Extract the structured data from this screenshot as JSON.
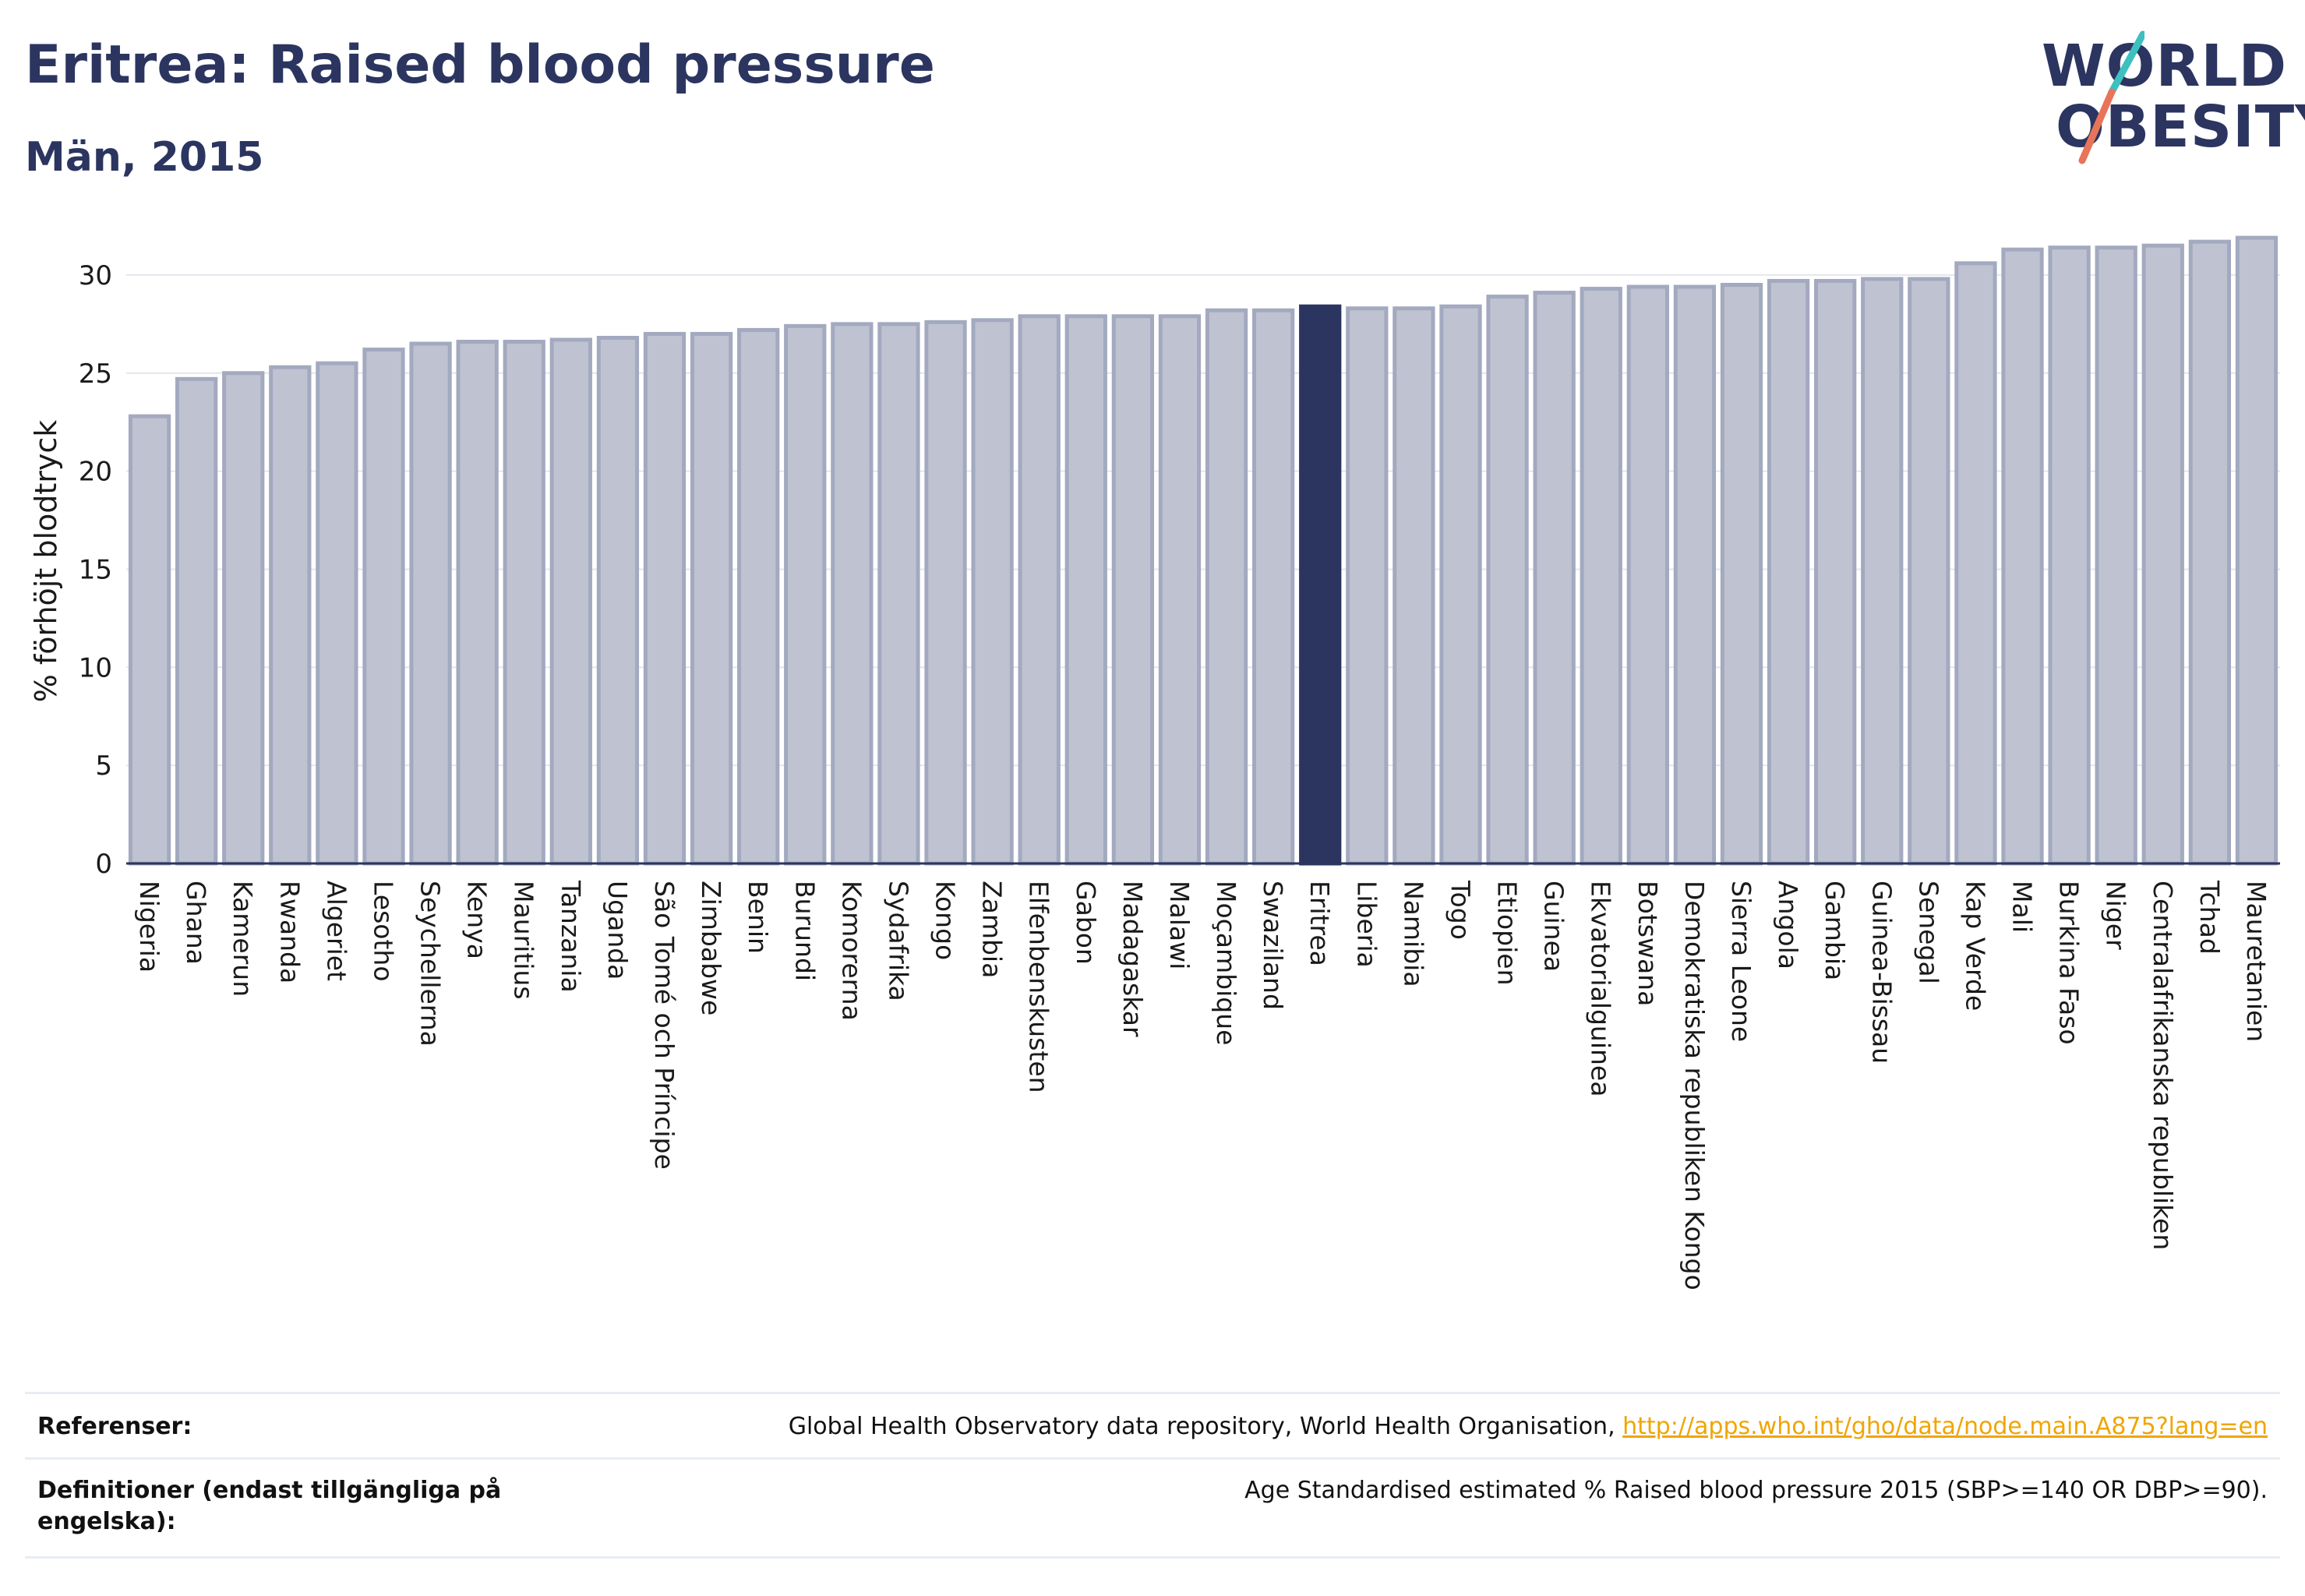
{
  "header": {
    "title": "Eritrea: Raised blood pressure",
    "subtitle": "Män, 2015"
  },
  "logo": {
    "line1": "WORLD",
    "line2": "OBESITY",
    "slash_colors": [
      "#3cc0c0",
      "#e8745a"
    ]
  },
  "colors": {
    "highlight": "#2b3560",
    "bar_fill": "#bfc3d1",
    "bar_stroke": "#a3a9bf",
    "grid": "#e3e6ee"
  },
  "chart_data": {
    "type": "bar",
    "title": "Eritrea: Raised blood pressure",
    "subtitle": "Män, 2015",
    "xlabel": "",
    "ylabel": "% förhöjt blodtryck",
    "ylim": [
      0,
      32.5
    ],
    "yticks": [
      0,
      5,
      10,
      15,
      20,
      25,
      30
    ],
    "grid": true,
    "highlight": "Eritrea",
    "categories": [
      "Nigeria",
      "Ghana",
      "Kamerun",
      "Rwanda",
      "Algeriet",
      "Lesotho",
      "Seychellerna",
      "Kenya",
      "Mauritius",
      "Tanzania",
      "Uganda",
      "São Tomé och Príncipe",
      "Zimbabwe",
      "Benin",
      "Burundi",
      "Komorerna",
      "Sydafrika",
      "Kongo",
      "Zambia",
      "Elfenbenskusten",
      "Gabon",
      "Madagaskar",
      "Malawi",
      "Moçambique",
      "Swaziland",
      "Eritrea",
      "Liberia",
      "Namibia",
      "Togo",
      "Etiopien",
      "Guinea",
      "Ekvatorialguinea",
      "Botswana",
      "Demokratiska republiken Kongo",
      "Sierra Leone",
      "Angola",
      "Gambia",
      "Guinea-Bissau",
      "Senegal",
      "Kap Verde",
      "Mali",
      "Burkina Faso",
      "Niger",
      "Centralafrikanska republiken",
      "Tchad",
      "Mauretanien"
    ],
    "values": [
      22.8,
      24.7,
      25.0,
      25.3,
      25.5,
      26.2,
      26.5,
      26.6,
      26.6,
      26.7,
      26.8,
      27.0,
      27.0,
      27.2,
      27.4,
      27.5,
      27.5,
      27.6,
      27.7,
      27.9,
      27.9,
      27.9,
      27.9,
      28.2,
      28.2,
      28.4,
      28.3,
      28.3,
      28.4,
      28.9,
      29.1,
      29.3,
      29.4,
      29.4,
      29.5,
      29.7,
      29.7,
      29.8,
      29.8,
      30.6,
      31.3,
      31.4,
      31.4,
      31.5,
      31.7,
      31.9
    ]
  },
  "footer": {
    "references_label": "Referenser:",
    "references_text": "Global Health Observatory data repository, World Health Organisation, ",
    "references_link": "http://apps.who.int/gho/data/node.main.A875?lang=en",
    "definitions_label": "Definitioner (endast tillgängliga på engelska):",
    "definitions_text": "Age Standardised estimated % Raised blood pressure 2015 (SBP>=140 OR DBP>=90)."
  }
}
